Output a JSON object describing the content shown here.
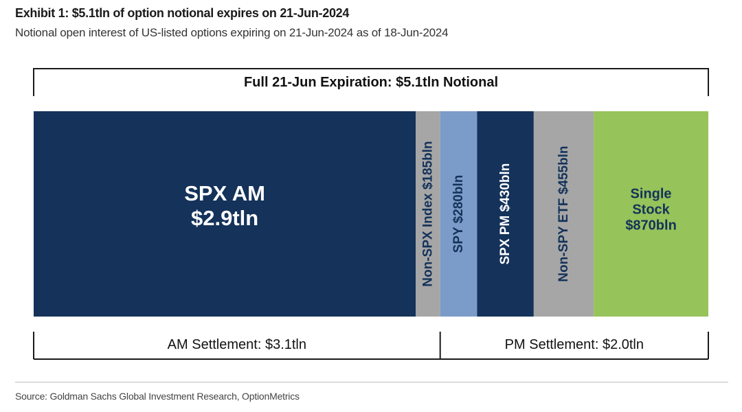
{
  "title": "Exhibit 1: $5.1tln of option notional expires on 21-Jun-2024",
  "subtitle": "Notional open interest of US-listed options expiring on 21-Jun-2024 as of 18-Jun-2024",
  "source": "Source: Goldman Sachs Global Investment Research, OptionMetrics",
  "chart_data": {
    "type": "bar",
    "orientation": "stacked-horizontal-marimekko",
    "unit": "$bln",
    "total_label": "Full 21-Jun Expiration: $5.1tln Notional",
    "total": 5100,
    "segments": [
      {
        "name": "SPX AM",
        "value": 2900,
        "label_lines": [
          "SPX AM",
          "$2.9tln"
        ],
        "color": "#14325a",
        "text_color": "#ffffff",
        "vertical": false
      },
      {
        "name": "Non-SPX Index",
        "value": 185,
        "label_lines": [
          "Non-SPX Index $185bln"
        ],
        "color": "#a6a6a6",
        "text_color": "#14325a",
        "vertical": true
      },
      {
        "name": "SPY",
        "value": 280,
        "label_lines": [
          "SPY $280bln"
        ],
        "color": "#7b9cc8",
        "text_color": "#14325a",
        "vertical": true
      },
      {
        "name": "SPX PM",
        "value": 430,
        "label_lines": [
          "SPX PM $430bln"
        ],
        "color": "#14325a",
        "text_color": "#ffffff",
        "vertical": true
      },
      {
        "name": "Non-SPY ETF",
        "value": 455,
        "label_lines": [
          "Non-SPY ETF $455bln"
        ],
        "color": "#a6a6a6",
        "text_color": "#14325a",
        "vertical": true
      },
      {
        "name": "Single Stock",
        "value": 870,
        "label_lines": [
          "Single",
          "Stock",
          "$870bln"
        ],
        "color": "#96c35a",
        "text_color": "#14325a",
        "vertical": false
      }
    ],
    "groups": [
      {
        "label": "AM Settlement: $3.1tln",
        "value": 3085
      },
      {
        "label": "PM Settlement: $2.0tln",
        "value": 2035
      }
    ]
  }
}
